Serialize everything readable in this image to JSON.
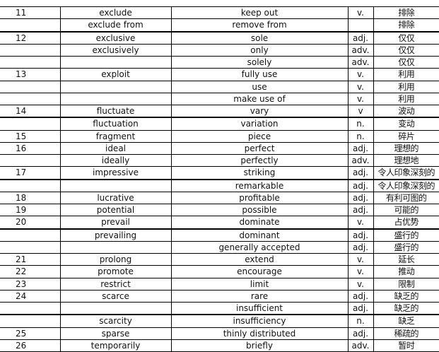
{
  "rows": [
    [
      "11",
      "exclude",
      "keep out",
      "v.",
      "排除"
    ],
    [
      "",
      "exclude from",
      "remove from",
      "",
      "排除"
    ],
    [
      "12",
      "exclusive",
      "sole",
      "adj.",
      "仅仅"
    ],
    [
      "",
      "exclusively",
      "only",
      "adv.",
      "仅仅"
    ],
    [
      "",
      "",
      "solely",
      "adv.",
      "仅仅"
    ],
    [
      "13",
      "exploit",
      "fully use",
      "v.",
      "利用"
    ],
    [
      "",
      "",
      "use",
      "v.",
      "利用"
    ],
    [
      "",
      "",
      "make use of",
      "v.",
      "利用"
    ],
    [
      "14",
      "fluctuate",
      "vary",
      "v",
      "波动"
    ],
    [
      "",
      "fluctuation",
      "variation",
      "n.",
      "变动"
    ],
    [
      "15",
      "fragment",
      "piece",
      "n.",
      "碎片"
    ],
    [
      "16",
      "ideal",
      "perfect",
      "adj.",
      "理想的"
    ],
    [
      "",
      "ideally",
      "perfectly",
      "adv.",
      "理想地"
    ],
    [
      "17",
      "impressive",
      "striking",
      "adj.",
      "令人印象深刻的"
    ],
    [
      "",
      "",
      "remarkable",
      "adj.",
      "令人印象深刻的"
    ],
    [
      "18",
      "lucrative",
      "profitable",
      "adj.",
      "有利可图的"
    ],
    [
      "19",
      "potential",
      "possible",
      "adj.",
      "可能的"
    ],
    [
      "20",
      "prevail",
      "dominate",
      "v.",
      "占优势"
    ],
    [
      "",
      "prevailing",
      "dominant",
      "adj.",
      "盛行的"
    ],
    [
      "",
      "",
      "generally accepted",
      "adj.",
      "盛行的"
    ],
    [
      "21",
      "prolong",
      "extend",
      "v.",
      "延长"
    ],
    [
      "22",
      "promote",
      "encourage",
      "v.",
      "推动"
    ],
    [
      "23",
      "restrict",
      "limit",
      "v.",
      "限制"
    ],
    [
      "24",
      "scarce",
      "rare",
      "adj.",
      "缺乏的"
    ],
    [
      "",
      "",
      "insufficient",
      "adj.",
      "缺乏的"
    ],
    [
      "",
      "scarcity",
      "insufficiency",
      "n.",
      "缺乏"
    ],
    [
      "25",
      "sparse",
      "thinly distributed",
      "adj.",
      "稀疏的"
    ],
    [
      "26",
      "temporarily",
      "briefly",
      "adv.",
      "暂时"
    ]
  ]
}
